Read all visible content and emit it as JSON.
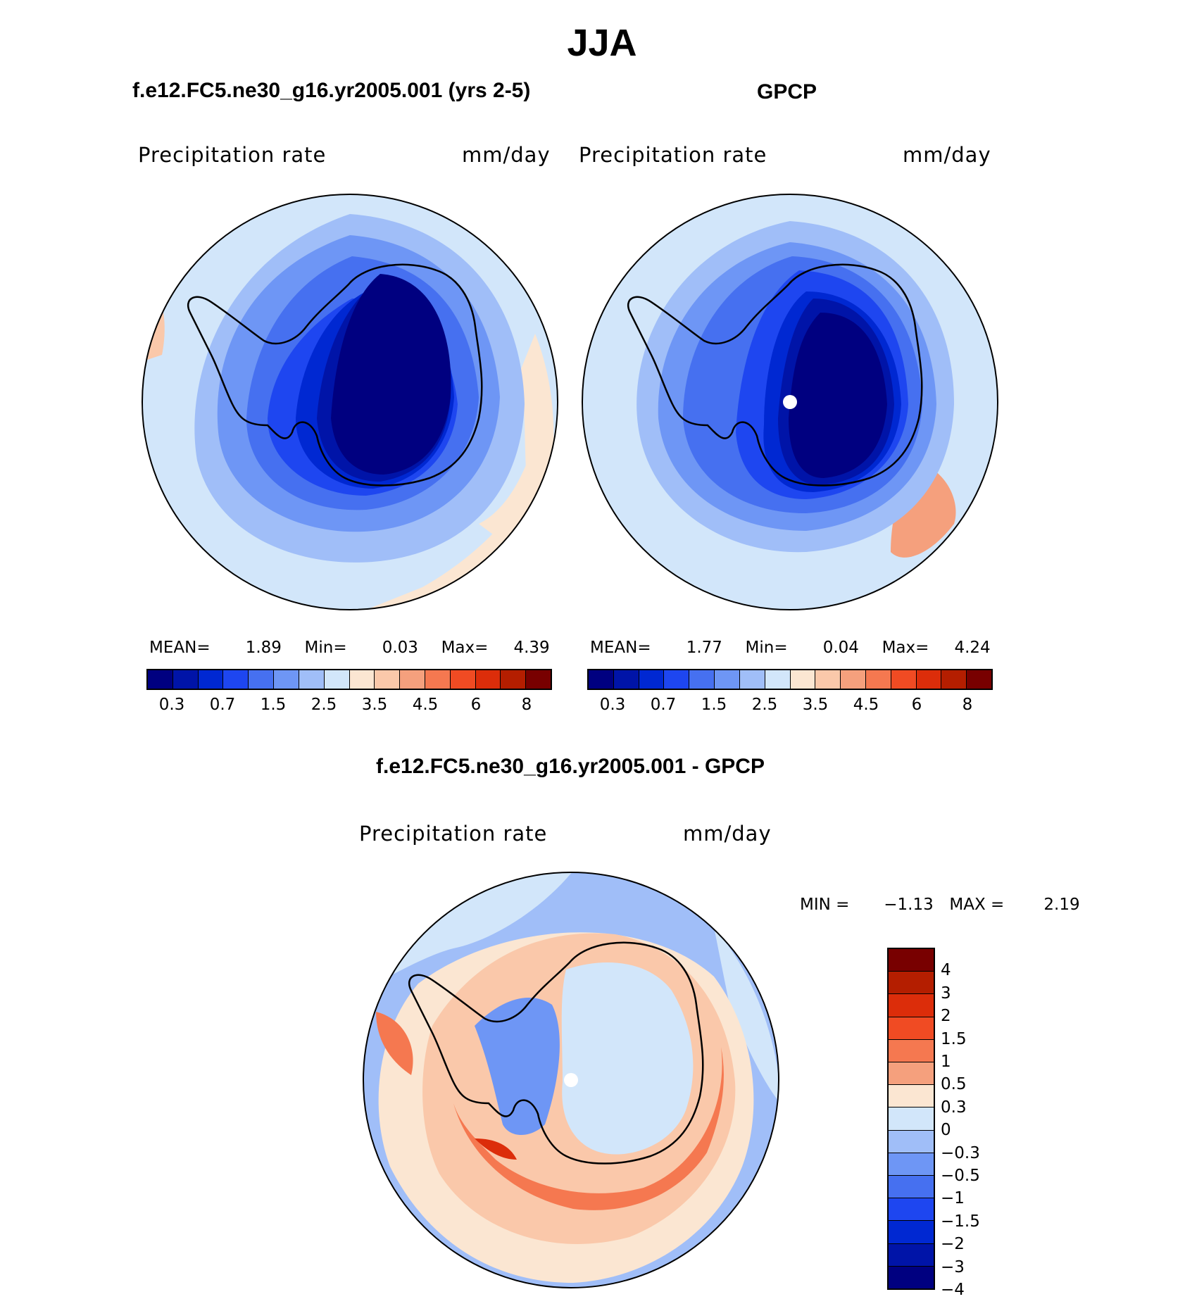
{
  "title": "JJA",
  "panels": [
    {
      "id": "model",
      "title": "f.e12.FC5.ne30_g16.yr2005.001 (yrs 2-5)",
      "field_label": "Precipitation rate",
      "units": "mm/day",
      "stats": {
        "mean_label": "MEAN=",
        "mean": "1.89",
        "min_label": "Min=",
        "min": "0.03",
        "max_label": "Max=",
        "max": "4.39"
      }
    },
    {
      "id": "obs",
      "title": "GPCP",
      "field_label": "Precipitation rate",
      "units": "mm/day",
      "stats": {
        "mean_label": "MEAN=",
        "mean": "1.77",
        "min_label": "Min=",
        "min": "0.04",
        "max_label": "Max=",
        "max": "4.24"
      }
    }
  ],
  "diff_panel": {
    "title": "f.e12.FC5.ne30_g16.yr2005.001 - GPCP",
    "field_label": "Precipitation rate",
    "units": "mm/day",
    "min_label": "MIN =",
    "min": "−1.13",
    "max_label": "MAX =",
    "max": "2.19"
  },
  "abs_colorbar": {
    "colors": [
      "#000080",
      "#0014a8",
      "#0028d2",
      "#1e46f0",
      "#4670f0",
      "#6e96f5",
      "#a0bef8",
      "#d2e6fa",
      "#fbe6d2",
      "#fac8aa",
      "#f5a07d",
      "#f57850",
      "#f04b23",
      "#dc2d0a",
      "#b41e00",
      "#780000"
    ],
    "tick_labels": [
      "0.3",
      "0.7",
      "1.5",
      "2.5",
      "3.5",
      "4.5",
      "6",
      "8"
    ]
  },
  "diff_colorbar": {
    "colors_top_to_bottom": [
      "#780000",
      "#b41e00",
      "#dc2d0a",
      "#f04b23",
      "#f57850",
      "#f5a07d",
      "#fbe6d2",
      "#d2e6fa",
      "#a0bef8",
      "#6e96f5",
      "#4670f0",
      "#1e46f0",
      "#0028d2",
      "#0014a8",
      "#000080"
    ],
    "tick_labels": [
      "4",
      "3",
      "2",
      "1.5",
      "1",
      "0.5",
      "0.3",
      "0",
      "−0.3",
      "−0.5",
      "−1",
      "−1.5",
      "−2",
      "−3",
      "−4"
    ]
  }
}
